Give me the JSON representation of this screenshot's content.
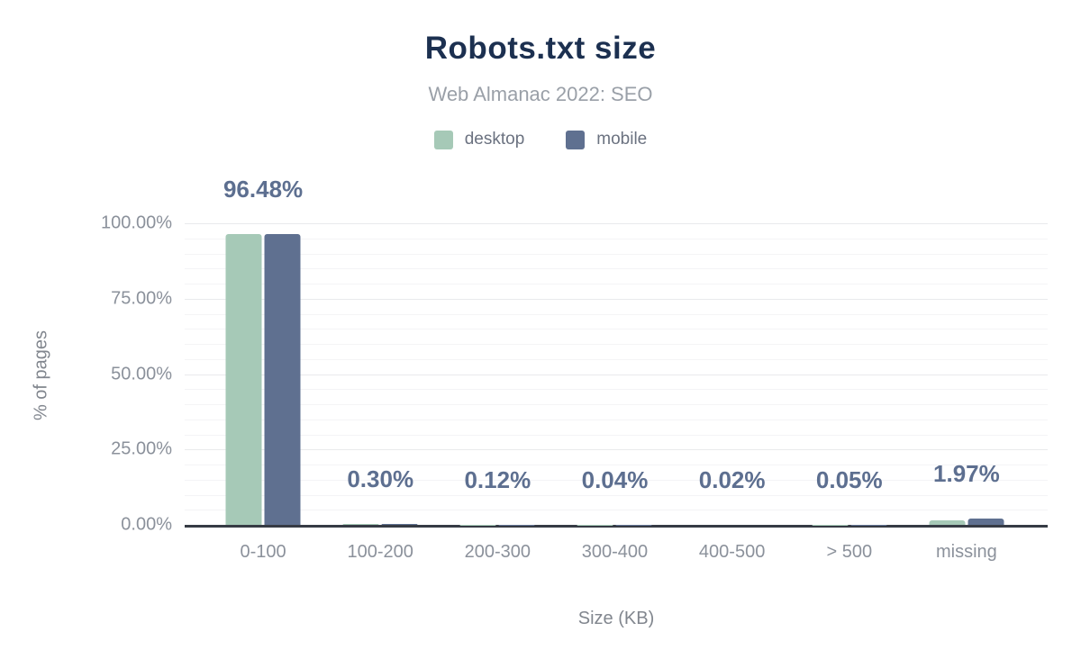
{
  "header": {
    "title": "Robots.txt size",
    "subtitle": "Web Almanac 2022: SEO"
  },
  "legend": {
    "items": [
      {
        "label": "desktop",
        "color": "#a6c9b7"
      },
      {
        "label": "mobile",
        "color": "#5f7090"
      }
    ]
  },
  "axes": {
    "y_title": "% of pages",
    "x_title": "Size (KB)"
  },
  "chart_data": {
    "type": "bar",
    "title": "Robots.txt size",
    "subtitle": "Web Almanac 2022: SEO",
    "xlabel": "Size (KB)",
    "ylabel": "% of pages",
    "categories": [
      "0-100",
      "100-200",
      "200-300",
      "300-400",
      "400-500",
      "> 500",
      "missing"
    ],
    "series": [
      {
        "name": "desktop",
        "color": "#a6c9b7",
        "values": [
          96.4,
          0.3,
          0.12,
          0.04,
          0.02,
          0.05,
          1.5
        ]
      },
      {
        "name": "mobile",
        "color": "#5f7090",
        "values": [
          96.48,
          0.3,
          0.12,
          0.04,
          0.02,
          0.05,
          1.97
        ]
      }
    ],
    "data_labels": [
      "96.48%",
      "0.30%",
      "0.12%",
      "0.04%",
      "0.02%",
      "0.05%",
      "1.97%"
    ],
    "ylim": [
      0,
      100
    ],
    "y_ticks": [
      {
        "value": 100,
        "label": "100.00%"
      },
      {
        "value": 75,
        "label": "75.00%"
      },
      {
        "value": 50,
        "label": "50.00%"
      },
      {
        "value": 25,
        "label": "25.00%"
      },
      {
        "value": 0,
        "label": "0.00%"
      }
    ],
    "minor_grid_step": 5,
    "grid": true,
    "legend_position": "top",
    "colors": {
      "title": "#1c3050",
      "subtitle": "#9aa0a8",
      "data_label": "#5d6f90",
      "tick_label": "#8b919b",
      "axis_title": "#81868e",
      "axis_line": "#363b44",
      "grid_major": "#e9eaec",
      "grid_minor": "#f4f4f6"
    }
  }
}
